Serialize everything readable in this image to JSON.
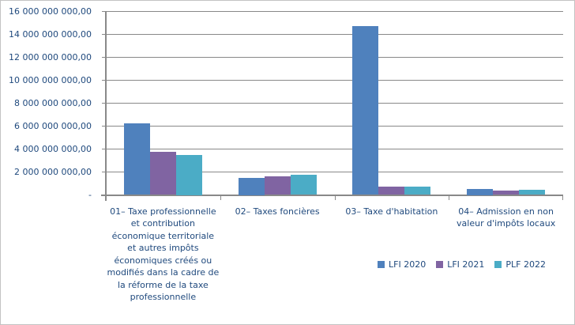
{
  "chart_data": {
    "type": "bar",
    "title": "",
    "xlabel": "",
    "ylabel": "",
    "categories": [
      "01– Taxe professionnelle et contribution économique territoriale et autres impôts économiques créés ou modifiés dans la cadre de la réforme de la taxe professionnelle",
      "02– Taxes foncières",
      "03– Taxe d'habitation",
      "04– Admission en non valeur d'impôts locaux"
    ],
    "series": [
      {
        "name": "LFI 2020",
        "color": "#4F81BD",
        "values": [
          6250000000,
          1500000000,
          14750000000,
          500000000
        ]
      },
      {
        "name": "LFI 2021",
        "color": "#8064A2",
        "values": [
          3800000000,
          1650000000,
          700000000,
          400000000
        ]
      },
      {
        "name": "PLF 2022",
        "color": "#4BACC6",
        "values": [
          3500000000,
          1750000000,
          700000000,
          450000000
        ]
      }
    ],
    "ylim": [
      0,
      16000000000
    ],
    "y_tick_step": 2000000000,
    "y_tick_labels": [
      "-",
      "2 000 000 000,00",
      "4 000 000 000,00",
      "6 000 000 000,00",
      "8 000 000 000,00",
      "10 000 000 000,00",
      "12 000 000 000,00",
      "14 000 000 000,00",
      "16 000 000 000,00"
    ],
    "grid": true,
    "legend_position": "bottom-right"
  },
  "colors": {
    "text": "#1F497D",
    "gridline": "#898989",
    "axis": "#898989",
    "background": "#FFFFFF",
    "frame_border": "#C3C3C3"
  }
}
